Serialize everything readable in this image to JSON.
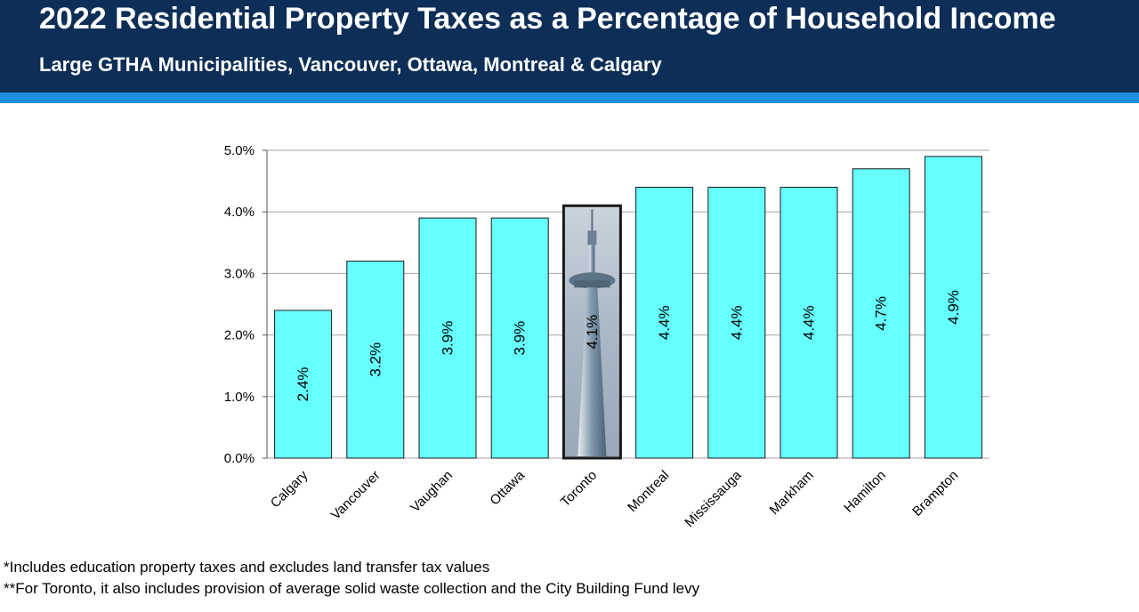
{
  "header": {
    "title": "2022 Residential Property Taxes as a Percentage of Household Income",
    "subtitle": "Large GTHA Municipalities, Vancouver, Ottawa, Montreal & Calgary"
  },
  "footnotes": {
    "note1": "*Includes education property taxes and excludes land transfer tax values",
    "note2": "**For Toronto, it also includes provision of average solid waste collection and the City Building Fund levy"
  },
  "colors": {
    "header_bg": "#0d2e57",
    "header_stripe": "#1e8fe0",
    "bar_fill": "#66ffff",
    "bar_stroke": "#1a1a1a",
    "grid": "#a6a6a6"
  },
  "chart_data": {
    "type": "bar",
    "title": "2022 Residential Property Taxes as a Percentage of Household Income",
    "xlabel": "",
    "ylabel": "",
    "categories": [
      "Calgary",
      "Vancouver",
      "Vaughan",
      "Ottawa",
      "Toronto",
      "Montreal",
      "Mississauga",
      "Markham",
      "Hamilton",
      "Brampton"
    ],
    "values": [
      2.4,
      3.2,
      3.9,
      3.9,
      4.1,
      4.4,
      4.4,
      4.4,
      4.7,
      4.9
    ],
    "data_labels": [
      "2.4%",
      "3.2%",
      "3.9%",
      "3.9%",
      "4.1%",
      "4.4%",
      "4.4%",
      "4.4%",
      "4.7%",
      "4.9%"
    ],
    "yticks": [
      0,
      1,
      2,
      3,
      4,
      5
    ],
    "ytick_labels": [
      "0.0%",
      "1.0%",
      "2.0%",
      "3.0%",
      "4.0%",
      "5.0%"
    ],
    "ylim": [
      0,
      5
    ],
    "grid": true,
    "highlight_category": "Toronto",
    "highlight_image": "cn-tower-photo"
  }
}
